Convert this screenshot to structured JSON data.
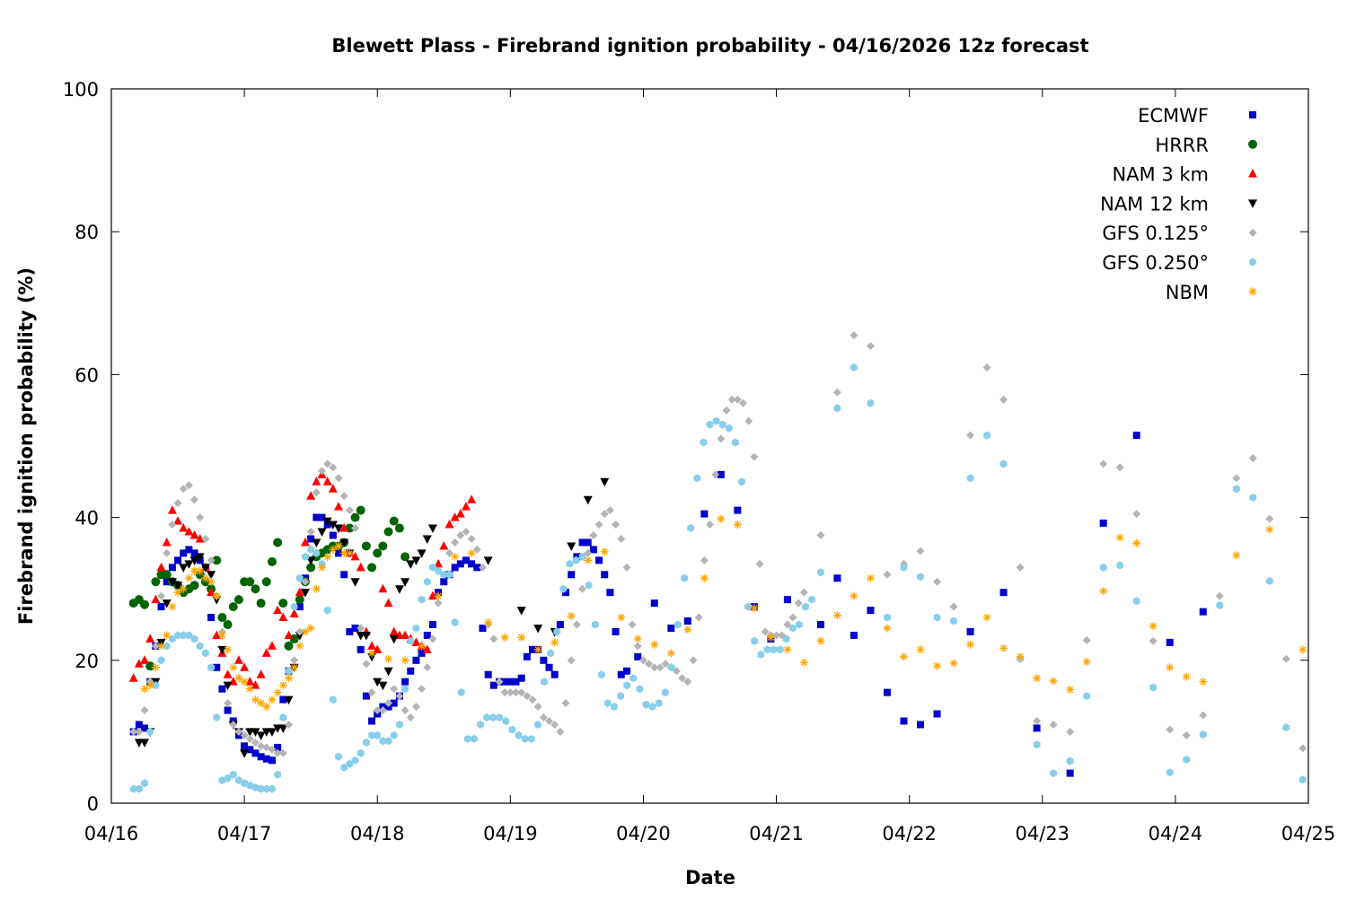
{
  "chart_data": {
    "type": "scatter",
    "title": "Blewett Plass - Firebrand ignition probability - 04/16/2026 12z forecast",
    "xlabel": "Date",
    "ylabel": "Firebrand ignition probability (%)",
    "x_units": "hours since 04/16 00z",
    "xlim": [
      0,
      216
    ],
    "ylim": [
      0,
      100
    ],
    "xticks": [
      {
        "value": 0,
        "label": "04/16"
      },
      {
        "value": 24,
        "label": "04/17"
      },
      {
        "value": 48,
        "label": "04/18"
      },
      {
        "value": 72,
        "label": "04/19"
      },
      {
        "value": 96,
        "label": "04/20"
      },
      {
        "value": 120,
        "label": "04/21"
      },
      {
        "value": 144,
        "label": "04/22"
      },
      {
        "value": 168,
        "label": "04/23"
      },
      {
        "value": 192,
        "label": "04/24"
      },
      {
        "value": 216,
        "label": "04/25"
      }
    ],
    "yticks": [
      {
        "value": 0,
        "label": "0"
      },
      {
        "value": 20,
        "label": "20"
      },
      {
        "value": 40,
        "label": "40"
      },
      {
        "value": 60,
        "label": "60"
      },
      {
        "value": 80,
        "label": "80"
      },
      {
        "value": 100,
        "label": "100"
      }
    ],
    "grid": false,
    "legend_position": "top-right",
    "series": [
      {
        "name": "ECMWF",
        "marker": "square",
        "color": "#0000cd",
        "segments": [
          {
            "start": 4,
            "step": 1,
            "y": [
              10,
              11,
              10.5,
              17,
              22,
              27.5,
              31,
              33,
              34,
              35,
              35.5,
              35,
              34,
              33,
              26,
              19,
              16,
              13,
              11.5,
              9.5,
              8,
              7.5,
              7,
              6.5,
              6.2,
              6,
              7.8,
              14.5,
              18.5,
              23,
              27.5,
              31.5,
              37,
              40,
              40,
              39,
              37.5,
              35,
              32,
              24,
              24.5,
              21.5,
              15,
              11.5,
              12.5,
              13.5,
              13.5,
              14,
              15,
              17,
              18.5,
              20,
              21,
              23.5,
              25,
              29.5,
              31,
              32,
              33,
              33.5,
              34,
              33.5,
              33,
              24.5,
              18,
              16.5,
              17,
              17,
              17,
              17,
              17.5,
              20.5,
              21.5,
              21.5,
              20,
              19,
              18,
              25,
              29.5,
              32,
              34.5,
              36.5,
              36.5,
              35.5,
              34,
              32,
              29.5
            ]
          },
          {
            "x": [
              91,
              92,
              93,
              95,
              98,
              101,
              104,
              107,
              110,
              113,
              116,
              119,
              122,
              128,
              131,
              134,
              137,
              140,
              143,
              146,
              149,
              155,
              161,
              167,
              173,
              179,
              185,
              191,
              197
            ],
            "y": [
              24,
              18,
              18.5,
              20.5,
              28,
              24.5,
              25.5,
              40.5,
              46,
              41,
              27.5,
              23,
              28.5,
              25,
              31.5,
              23.5,
              27,
              15.5,
              11.5,
              11,
              12.5,
              24,
              29.5,
              10.5,
              4.2,
              39.2,
              51.5,
              22.5,
              26.8
            ]
          }
        ]
      },
      {
        "name": "HRRR",
        "marker": "circle",
        "color": "#006400",
        "segments": [
          {
            "start": 4,
            "step": 1,
            "y": [
              28,
              28.5,
              27.8,
              19.2,
              31,
              32,
              32,
              31,
              30.5,
              29.5,
              30,
              30.5,
              32,
              31,
              30,
              34,
              26,
              25,
              27.5,
              28.5,
              31,
              31,
              30,
              28,
              31,
              33.8,
              36.5,
              28,
              22,
              23,
              28.5,
              31,
              33,
              34.5,
              35,
              35.5,
              36,
              36,
              36.5,
              38.5,
              40,
              41,
              36,
              33,
              35,
              36,
              38,
              39.5,
              38.5,
              34.5
            ]
          }
        ]
      },
      {
        "name": "NAM 3 km",
        "marker": "triangle-up",
        "color": "#ff0000",
        "segments": [
          {
            "start": 4,
            "step": 1,
            "y": [
              17.5,
              19.5,
              20,
              23,
              28.5,
              33,
              36.5,
              41,
              39.5,
              38.5,
              38,
              37.5,
              37,
              33,
              29.5,
              23.5,
              21,
              18,
              17,
              20,
              19,
              17,
              16.5,
              18,
              21,
              22,
              27,
              26,
              23.5,
              26.5,
              29.5,
              36.5,
              43,
              45,
              46,
              45,
              44,
              41.5,
              38.5,
              35,
              34.5,
              33,
              24,
              22,
              21.5,
              30,
              28,
              24,
              23.5,
              23.5,
              23,
              22.5,
              22,
              21.5,
              29,
              33.5,
              36,
              39,
              40,
              40.5,
              41.5,
              42.5
            ]
          }
        ]
      },
      {
        "name": "NAM 12 km",
        "marker": "triangle-down",
        "color": "#000000",
        "segments": [
          {
            "start": 5,
            "step": 1,
            "y": [
              8.5,
              8.5,
              10,
              17,
              22.5,
              28,
              31,
              30.5,
              33,
              33.5,
              34,
              34.5,
              33,
              32,
              28.5,
              21.5,
              16.5,
              11,
              10,
              7,
              10,
              10,
              9.5,
              10,
              10,
              10.5,
              10.5,
              14.5,
              19,
              23.5,
              29.5,
              34,
              36.5,
              38,
              39.5,
              39,
              38.5,
              36.5,
              35,
              31,
              23.5,
              23.5,
              20.5,
              17,
              16.5,
              18.5,
              23,
              30,
              31,
              33.5,
              34,
              35,
              37,
              38.5
            ]
          },
          {
            "x": [
              68,
              74,
              77,
              80,
              83,
              86,
              89
            ],
            "y": [
              34,
              27,
              24.5,
              24,
              36,
              42.5,
              45
            ]
          }
        ]
      },
      {
        "name": "GFS 0.125°",
        "marker": "diamond",
        "color": "#b4b4b4",
        "segments": [
          {
            "start": 4,
            "step": 1,
            "y": [
              10,
              10,
              13,
              17,
              22,
              29,
              35,
              39,
              42,
              44,
              44.5,
              42.5,
              40,
              37,
              34,
              29,
              24,
              14,
              11,
              10,
              9.5,
              9,
              8.5,
              8,
              7.8,
              7.5,
              7,
              7,
              11,
              20,
              24,
              31,
              38,
              43.5,
              46.5,
              47.5,
              47,
              45.5,
              43,
              41,
              38.5,
              24.5,
              19.5,
              15.5,
              13,
              13,
              14,
              16,
              15,
              13,
              12,
              13.5,
              16,
              19,
              23,
              28,
              32,
              35,
              36.5,
              37.5,
              38,
              37,
              35.5,
              33,
              25,
              23,
              17,
              15.5,
              15.5,
              15.5,
              15.5,
              15,
              14.5,
              13.5,
              12,
              11.5,
              11,
              10,
              14,
              20,
              25,
              30,
              35,
              37.5,
              39,
              40.5,
              41,
              39,
              37,
              33,
              25,
              22,
              20,
              19.5,
              19,
              19,
              19.5,
              19,
              18.5,
              17.5,
              17,
              20,
              26,
              34,
              39,
              46,
              51,
              55,
              56.5,
              56.5,
              56,
              53.5,
              48.5,
              33.5,
              24,
              23.5,
              23.5,
              23.5,
              25,
              26,
              28,
              29.5
            ]
          },
          {
            "start": 128,
            "step": 3,
            "y": [
              37.5,
              57.5,
              65.5,
              64,
              32,
              33.5,
              35.3,
              31,
              27.5,
              51.5,
              61,
              56.5,
              33,
              11.5,
              11,
              10,
              22.8,
              47.5,
              47,
              40.5,
              22.7,
              10.3,
              9.5,
              12.3,
              29,
              45.5,
              48.3,
              39.8,
              20.2,
              7.7
            ]
          }
        ]
      },
      {
        "name": "GFS 0.250°",
        "marker": "hexagon",
        "color": "#87ceeb",
        "segments": [
          {
            "start": 4,
            "step": 1,
            "y": [
              2,
              2,
              2.8,
              10,
              16.5,
              20,
              22,
              23,
              23.5,
              23.5,
              23.5,
              23,
              22,
              21,
              19,
              12,
              3.2,
              3.5,
              4,
              3.2,
              2.8,
              2.5,
              2.2,
              2,
              2,
              2,
              4,
              12,
              18.5,
              27.5,
              31.5,
              34.5,
              35.5,
              35,
              33.5,
              27,
              14.5,
              6.5,
              5,
              5.5,
              6,
              7,
              8.5,
              9.5,
              9.5,
              8.7,
              8.7,
              9.5,
              11,
              16,
              22.7,
              24.5,
              28.5,
              31,
              33,
              32.5,
              32,
              32
            ]
          },
          {
            "start": 62,
            "step": 1.15,
            "y": [
              25.3,
              15.5,
              9,
              9,
              11,
              12,
              12,
              12,
              11.5,
              10.3,
              9.5,
              9,
              9,
              11,
              17,
              21,
              24,
              30,
              33.5,
              34,
              34.5,
              30.5,
              25,
              18,
              14,
              13.5,
              15,
              16.5,
              17.5,
              16,
              13.8,
              13.5,
              14,
              15.5,
              19,
              25,
              31.5,
              38.5,
              45.5,
              50.5,
              53,
              53.5,
              53,
              52.5,
              50.5,
              45,
              27.5,
              22.7,
              20.8,
              21.5,
              21.5,
              21.5,
              23,
              24.5,
              25,
              27.5,
              28.5
            ]
          },
          {
            "start": 128,
            "step": 3,
            "y": [
              32.3,
              55.3,
              61,
              56,
              26,
              33,
              31.7,
              26,
              25.5,
              45.5,
              51.5,
              47.5,
              20.2,
              8.2,
              4.2,
              5.9,
              15,
              33,
              33.3,
              28.3,
              16.2,
              4.3,
              6.1,
              9.6,
              27.7,
              44,
              42.8,
              31.1,
              10.6,
              3.3
            ]
          }
        ]
      },
      {
        "name": "NBM",
        "marker": "asterisk",
        "color": "#ffa500",
        "segments": [
          {
            "start": 6,
            "step": 1,
            "y": [
              16,
              16.5,
              19,
              22,
              23.5,
              27.5,
              29.5,
              30,
              31.5,
              32.5,
              32.5,
              31.5,
              31,
              29,
              23.5,
              21.5,
              19,
              17.5,
              17,
              16,
              14.5,
              14,
              13.5,
              14.5,
              15.5,
              16.5,
              17.5,
              19,
              22,
              24,
              24.5,
              30,
              33,
              34.5,
              35.5,
              36,
              35,
              35
            ]
          },
          {
            "x": [
              47,
              50,
              53,
              56,
              59,
              62,
              65,
              68,
              71,
              74,
              77,
              80,
              83,
              86,
              89,
              92,
              95,
              98,
              101,
              104,
              107,
              110,
              113,
              116,
              119,
              122,
              125,
              128,
              131,
              134,
              137,
              140,
              143,
              146,
              149,
              152,
              155,
              158,
              161,
              164,
              167,
              170,
              173,
              176,
              179,
              182,
              185,
              188,
              191,
              194,
              197,
              203,
              209,
              215
            ],
            "y": [
              21,
              20.2,
              20,
              22,
              29,
              34.5,
              35,
              25.3,
              23.2,
              23.2,
              21.5,
              22.5,
              26.2,
              34,
              35.2,
              26,
              23,
              22.2,
              21,
              24.3,
              31.5,
              39.8,
              39,
              27.3,
              23.2,
              21.5,
              19.7,
              22.7,
              26.3,
              29,
              31.5,
              24.5,
              20.5,
              21.5,
              19.2,
              19.6,
              22.2,
              26,
              21.7,
              20.5,
              17.5,
              17.1,
              15.9,
              19.8,
              29.7,
              37.2,
              36.4,
              24.8,
              19,
              17.7,
              17,
              34.7,
              38.3,
              21.5
            ]
          }
        ]
      }
    ]
  }
}
